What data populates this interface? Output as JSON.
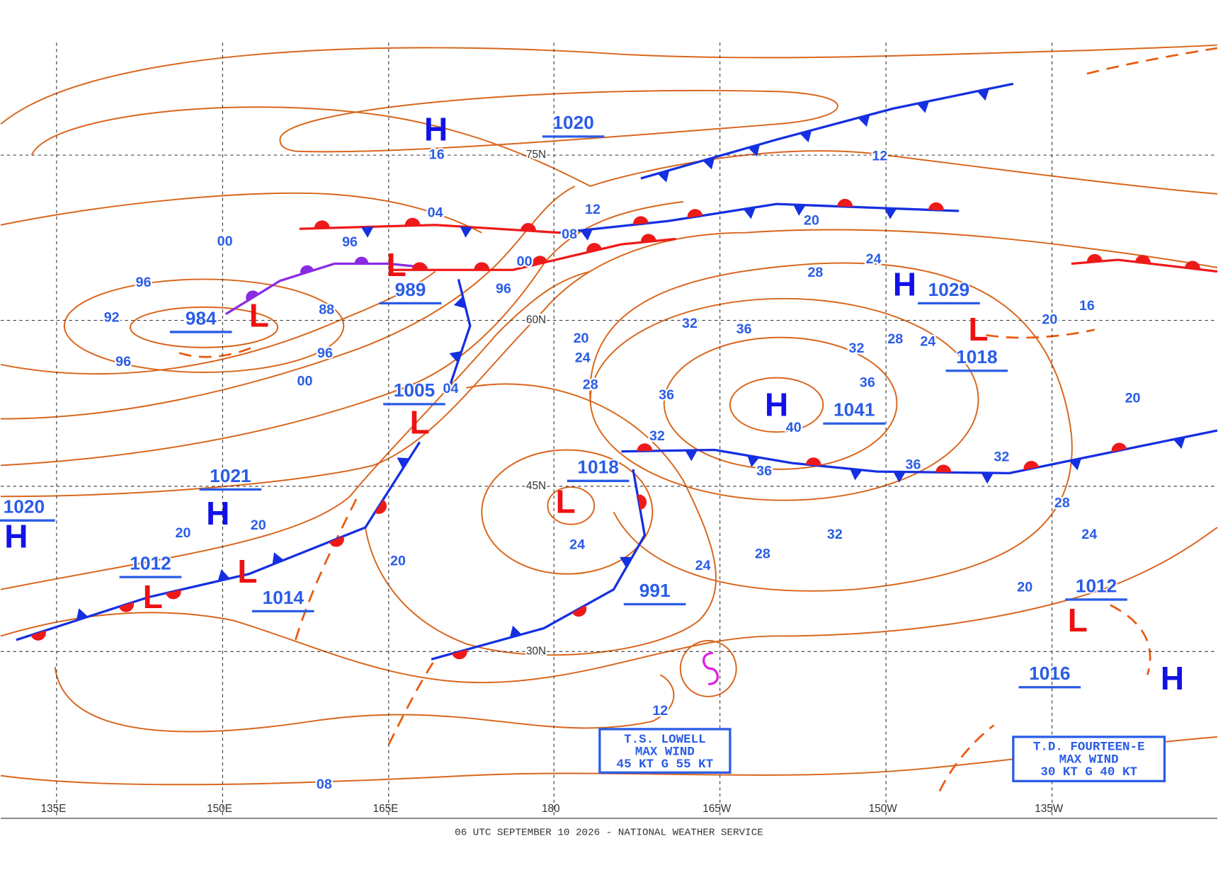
{
  "map": {
    "longitudes": [
      "135E",
      "150E",
      "165E",
      "180",
      "165W",
      "150W",
      "135W"
    ],
    "latitudes": [
      "75N",
      "60N",
      "45N",
      "30N"
    ],
    "systems": [
      "H",
      "L",
      "L",
      "L",
      "H",
      "H",
      "L",
      "L",
      "L",
      "H",
      "H",
      "L",
      "L",
      "H"
    ],
    "central_pressures": [
      "1020",
      "984",
      "989",
      "1005",
      "1021",
      "1020",
      "1012",
      "1014",
      "1018",
      "991",
      "1041",
      "1029",
      "1018",
      "1012",
      "1016"
    ],
    "isobar_labels": [
      "16",
      "12",
      "04",
      "08",
      "12",
      "00",
      "96",
      "00",
      "96",
      "96",
      "92",
      "88",
      "96",
      "96",
      "00",
      "04",
      "20",
      "24",
      "28",
      "32",
      "36",
      "20",
      "24",
      "28",
      "32",
      "28",
      "24",
      "36",
      "36",
      "32",
      "40",
      "36",
      "36",
      "32",
      "20",
      "16",
      "20",
      "28",
      "24",
      "20",
      "32",
      "28",
      "24",
      "24",
      "20",
      "20",
      "20",
      "12",
      "08"
    ],
    "storms": [
      {
        "lines": [
          "T.S. LOWELL",
          "MAX WIND",
          "45 KT G 55 KT"
        ]
      },
      {
        "lines": [
          "T.D. FOURTEEN-E",
          "MAX WIND",
          "30 KT G 40 KT"
        ]
      }
    ],
    "footer": "06 UTC SEPTEMBER 10 2026 - NATIONAL WEATHER SERVICE"
  }
}
